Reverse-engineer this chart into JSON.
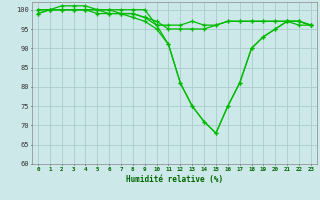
{
  "xlabel": "Humidité relative (%)",
  "background_color": "#cce8e8",
  "grid_color": "#aacccc",
  "line_color": "#00bb00",
  "marker_color": "#00bb00",
  "xlim": [
    -0.5,
    23.5
  ],
  "ylim": [
    60,
    102
  ],
  "yticks": [
    60,
    65,
    70,
    75,
    80,
    85,
    90,
    95,
    100
  ],
  "xticks": [
    0,
    1,
    2,
    3,
    4,
    5,
    6,
    7,
    8,
    9,
    10,
    11,
    12,
    13,
    14,
    15,
    16,
    17,
    18,
    19,
    20,
    21,
    22,
    23
  ],
  "series": [
    [
      100,
      100,
      101,
      101,
      101,
      100,
      100,
      100,
      100,
      100,
      96,
      96,
      96,
      97,
      96,
      96,
      97,
      97,
      97,
      97,
      97,
      97,
      96,
      96
    ],
    [
      100,
      100,
      100,
      100,
      100,
      100,
      100,
      99,
      99,
      98,
      97,
      95,
      95,
      95,
      95,
      96,
      97,
      97,
      97,
      97,
      97,
      97,
      97,
      96
    ],
    [
      99,
      100,
      100,
      100,
      100,
      100,
      99,
      99,
      99,
      98,
      96,
      91,
      81,
      75,
      71,
      68,
      75,
      81,
      90,
      93,
      95,
      97,
      97,
      96
    ],
    [
      99,
      100,
      100,
      100,
      100,
      99,
      99,
      99,
      98,
      97,
      95,
      91,
      81,
      75,
      71,
      68,
      75,
      81,
      90,
      93,
      95,
      97,
      97,
      96
    ]
  ]
}
